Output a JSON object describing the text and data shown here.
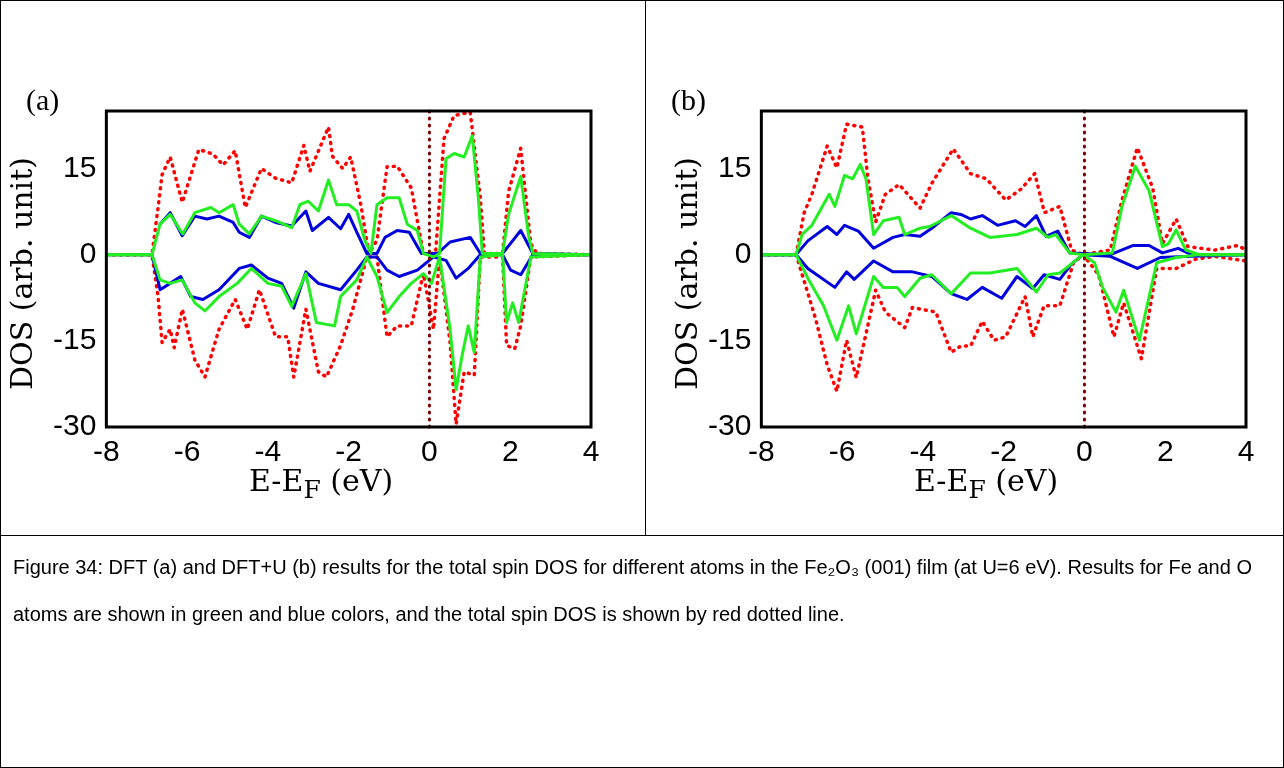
{
  "chart_data": [
    {
      "type": "line",
      "title": "(a)",
      "xlabel": "E-E$_{F}$ (eV)",
      "ylabel": "DOS (arb. unit)",
      "xlim": [
        -8,
        4
      ],
      "xticks": [
        -8,
        -6,
        -4,
        -2,
        0,
        2,
        4
      ],
      "ylim": [
        -30,
        25
      ],
      "yticks": [
        -30,
        -15,
        0,
        15
      ],
      "ref_lines": [
        {
          "axis": "x",
          "value": 0,
          "color": "#800000",
          "line_style": "dotted"
        }
      ],
      "series": [
        {
          "color": "#22ee22",
          "x": [
            -8,
            -6.87,
            -6.67,
            -6.42,
            -6.11,
            -5.81,
            -5.41,
            -5.21,
            -4.86,
            -4.71,
            -4.46,
            -4.16,
            -3.81,
            -3.41,
            -3.21,
            -3,
            -2.75,
            -2.5,
            -2.3,
            -2,
            -1.8,
            -1.6,
            -1.45,
            -1.3,
            -1.05,
            -0.75,
            -0.55,
            -0.3,
            -0.15,
            0.1,
            0.25,
            0.41,
            0.61,
            0.86,
            1.06,
            1.21,
            1.31,
            1.81,
            1.96,
            2.26,
            2.46,
            2.56,
            4
          ],
          "values": [
            0,
            0,
            5.3,
            7,
            3.6,
            7.3,
            8.2,
            7.3,
            8.7,
            5.3,
            3.6,
            6.7,
            5.9,
            4.7,
            8.7,
            9.3,
            7.6,
            13,
            8.7,
            8.7,
            7.6,
            2.5,
            0.2,
            8.7,
            9.9,
            9.9,
            5.3,
            4.2,
            0.2,
            -0.4,
            0.2,
            16.7,
            17.6,
            17,
            20.7,
            9.9,
            0.2,
            0.2,
            7,
            13.6,
            3,
            0.2,
            0
          ]
        },
        {
          "color": "#22ee22",
          "x": [
            -8,
            -6.87,
            -6.67,
            -6.42,
            -6.12,
            -5.81,
            -5.56,
            -5.21,
            -4.76,
            -4.41,
            -4,
            -3.66,
            -3.41,
            -3.06,
            -2.8,
            -2.35,
            -2.2,
            -1.8,
            -1.55,
            -1.3,
            -1.05,
            -0.75,
            -0.45,
            -0.15,
            0.05,
            0.25,
            0.51,
            0.66,
            0.81,
            0.96,
            1.11,
            1.26,
            1.81,
            1.91,
            2.06,
            2.21,
            2.51,
            4
          ],
          "values": [
            0,
            0,
            -4.4,
            -5,
            -4.4,
            -8.4,
            -9.8,
            -7.3,
            -5,
            -2.4,
            -5,
            -5.5,
            -9,
            -3.3,
            -11.8,
            -12.4,
            -7.3,
            -4.4,
            -0.4,
            -3.8,
            -10.1,
            -7.3,
            -5,
            -3.3,
            -5,
            -0.4,
            -13,
            -23.5,
            -17.5,
            -12.4,
            -17,
            -0.4,
            0,
            -11.8,
            -8.4,
            -11.8,
            -0.4,
            0
          ]
        },
        {
          "color": "#0000dd",
          "x": [
            -6.67,
            -6.42,
            -6.12,
            -5.81,
            -5.51,
            -5.21,
            -4.86,
            -4.71,
            -4.46,
            -4.16,
            -3.81,
            -3.41,
            -3.06,
            -2.9,
            -2.5,
            -2.2,
            -2,
            -1.8,
            -1.55,
            -1.3,
            -1.1,
            -0.8,
            -0.5,
            -0.2,
            0.2,
            0.51,
            1.01,
            1.26,
            1.81,
            2.26,
            2.56,
            4
          ],
          "values": [
            5.3,
            7.3,
            3.3,
            6.7,
            6.2,
            6.7,
            5.6,
            3.9,
            3,
            6.7,
            5.6,
            5,
            7.6,
            4.2,
            6.5,
            4.5,
            7,
            3.9,
            0.2,
            0.2,
            3,
            4.2,
            3.9,
            0.2,
            0.2,
            2.2,
            3,
            0.2,
            0.2,
            4.2,
            0.2,
            0
          ]
        },
        {
          "color": "#0000dd",
          "x": [
            -8,
            -6.87,
            -6.67,
            -6.42,
            -6.16,
            -5.91,
            -5.61,
            -5.21,
            -4.71,
            -4.41,
            -4,
            -3.66,
            -3.36,
            -3.06,
            -2.75,
            -2.2,
            -1.8,
            -1.55,
            -1.3,
            -1.05,
            -0.75,
            -0.3,
            0.1,
            0.41,
            0.66,
            0.96,
            1.26,
            1.81,
            2.01,
            2.26,
            2.56,
            4
          ],
          "values": [
            0,
            0,
            -6.1,
            -5,
            -3.8,
            -7.3,
            -7.8,
            -6.1,
            -2.4,
            -1.8,
            -4.1,
            -5,
            -9.3,
            -3,
            -5,
            -6.1,
            -2.7,
            -0.4,
            -0.4,
            -2.7,
            -3.8,
            -2.7,
            -0.4,
            -1,
            -4.1,
            -2.4,
            0,
            0,
            -2.7,
            -3.5,
            0,
            0
          ]
        },
        {
          "color": "#ff0000",
          "line_style": "dotted",
          "x": [
            -8,
            -6.87,
            -6.72,
            -6.62,
            -6.42,
            -6.12,
            -5.71,
            -5.36,
            -5.11,
            -4.81,
            -4.56,
            -4.16,
            -3.81,
            -3.41,
            -3.11,
            -2.96,
            -2.5,
            -2.4,
            -2.15,
            -1.95,
            -1.7,
            -1.5,
            -1.3,
            -1.05,
            -0.8,
            -0.45,
            -0.15,
            0.15,
            0.36,
            0.61,
            1.01,
            1.26,
            1.36,
            1.81,
            1.96,
            2.26,
            2.51,
            2.66,
            4
          ],
          "values": [
            0,
            0,
            8.2,
            13.9,
            17,
            9.1,
            18.3,
            17.5,
            15.6,
            18.1,
            8.2,
            15,
            13.3,
            12.5,
            19,
            14.5,
            22.2,
            17.1,
            15,
            17,
            8.7,
            0.2,
            2.5,
            15.3,
            15.4,
            11.6,
            0.2,
            0.2,
            20.2,
            24.2,
            24.8,
            9.9,
            0.2,
            0.2,
            11,
            18.5,
            1.9,
            0.2,
            0
          ]
        },
        {
          "color": "#ff0000",
          "line_style": "dotted",
          "x": [
            -8,
            -6.87,
            -6.72,
            -6.62,
            -6.42,
            -6.32,
            -6.12,
            -5.81,
            -5.56,
            -5.21,
            -4.81,
            -4.51,
            -4.21,
            -3.81,
            -3.51,
            -3.36,
            -3.06,
            -2.75,
            -2.55,
            -2.2,
            -1.9,
            -1.55,
            -1.3,
            -1.05,
            -0.8,
            -0.45,
            -0.15,
            0.1,
            0.25,
            0.51,
            0.66,
            0.86,
            1.11,
            1.26,
            1.81,
            1.91,
            2.11,
            2.26,
            2.51,
            4
          ],
          "values": [
            0,
            0,
            -7.3,
            -15.3,
            -13,
            -16.2,
            -9.5,
            -18.3,
            -21.3,
            -13,
            -7.8,
            -13,
            -6.1,
            -14.3,
            -14.3,
            -21.3,
            -9.5,
            -20.4,
            -21.3,
            -15.8,
            -9.5,
            -0.4,
            -0.4,
            -14.3,
            -12.4,
            -12.4,
            -3.3,
            -13,
            -0.4,
            -15.3,
            -29.5,
            -20.4,
            -21,
            -0.4,
            -0.4,
            -15.8,
            -16.4,
            -12.4,
            -0.4,
            0
          ]
        }
      ]
    },
    {
      "type": "line",
      "title": "(b)",
      "xlabel": "E-E$_{F}$ (eV)",
      "ylabel": "DOS (arb. unit)",
      "xlim": [
        -8,
        4
      ],
      "xticks": [
        -8,
        -6,
        -4,
        -2,
        0,
        2,
        4
      ],
      "ylim": [
        -30,
        25
      ],
      "yticks": [
        -30,
        -15,
        0,
        15
      ],
      "ref_lines": [
        {
          "axis": "x",
          "value": 0,
          "color": "#800000",
          "line_style": "dotted"
        }
      ],
      "series": [
        {
          "color": "#22ee22",
          "x": [
            -8,
            -7.14,
            -6.99,
            -6.75,
            -6.32,
            -6.18,
            -5.94,
            -5.74,
            -5.55,
            -5.41,
            -5.22,
            -4.98,
            -4.59,
            -4.45,
            -4.07,
            -3.83,
            -3.3,
            -2.82,
            -2.34,
            -1.67,
            -1.19,
            -0.9,
            -0.71,
            -0.37,
            -0.03,
            0.69,
            0.93,
            1.26,
            1.6,
            1.93,
            2.08,
            2.27,
            2.51,
            2.84,
            4
          ],
          "values": [
            0,
            0,
            3.5,
            5.1,
            10.5,
            8.4,
            13.8,
            13.2,
            15.7,
            13.2,
            3.5,
            5.9,
            6.5,
            3.5,
            4.6,
            4.9,
            6.8,
            4.6,
            3,
            3.5,
            4.6,
            3,
            3.5,
            0.3,
            0,
            0.3,
            8.4,
            15.4,
            11.1,
            1.4,
            1.9,
            4.3,
            0.8,
            0,
            0
          ]
        },
        {
          "color": "#22ee22",
          "x": [
            -8,
            -7.14,
            -6.85,
            -6.46,
            -6.13,
            -5.84,
            -5.65,
            -5.22,
            -4.98,
            -4.64,
            -4.45,
            -4.07,
            -3.78,
            -3.3,
            -2.82,
            -2.34,
            -1.67,
            -1.19,
            -0.9,
            -0.61,
            -0.32,
            -0.03,
            0.25,
            0.45,
            0.78,
            0.97,
            1.36,
            1.79,
            2.27,
            2.84,
            4
          ],
          "values": [
            0,
            0,
            -4.1,
            -8.9,
            -14.9,
            -8.9,
            -13.8,
            -3.8,
            -5.7,
            -5.7,
            -7.3,
            -4.1,
            -3.5,
            -6.8,
            -3.2,
            -3.2,
            -2.4,
            -6.5,
            -3.5,
            -3.2,
            -1.6,
            0,
            -1.4,
            -5.7,
            -10,
            -6.2,
            -14.9,
            -1.4,
            -0.5,
            0,
            0
          ]
        },
        {
          "color": "#0000dd",
          "x": [
            -8,
            -7.14,
            -6.85,
            -6.37,
            -6.13,
            -5.94,
            -5.6,
            -5.22,
            -4.74,
            -4.45,
            -4.07,
            -3.78,
            -3.3,
            -3.06,
            -2.82,
            -2.53,
            -2.15,
            -1.71,
            -1.47,
            -1.19,
            -0.95,
            -0.66,
            -0.37,
            0.64,
            1.21,
            1.6,
            1.93,
            2.32,
            2.65,
            4
          ],
          "values": [
            0,
            0,
            2.4,
            4.9,
            3.5,
            5.1,
            4.1,
            1.1,
            3,
            3.5,
            3.2,
            4.6,
            7.3,
            7,
            6.2,
            6.8,
            5.1,
            5.9,
            4.9,
            6.8,
            3.2,
            4.1,
            0.3,
            0,
            1.6,
            1.6,
            0.3,
            1.1,
            0,
            0
          ]
        },
        {
          "color": "#0000dd",
          "x": [
            -8,
            -7.14,
            -6.85,
            -6.18,
            -5.89,
            -5.7,
            -5.22,
            -4.74,
            -4.26,
            -3.78,
            -3.3,
            -2.91,
            -2.53,
            -2.05,
            -1.67,
            -1.28,
            -1,
            -0.61,
            -0.32,
            -0.03,
            0.64,
            1.31,
            1.88,
            2.65,
            4
          ],
          "values": [
            0,
            0,
            -2.4,
            -5.7,
            -3,
            -4.3,
            -1.1,
            -3,
            -3,
            -3.8,
            -6.8,
            -7.8,
            -5.7,
            -7.6,
            -3.8,
            -5.9,
            -3.5,
            -4.3,
            -1.6,
            0,
            -0.3,
            -2.4,
            -0.5,
            -0.3,
            0
          ]
        },
        {
          "color": "#ff0000",
          "line_style": "dotted",
          "x": [
            -8,
            -7.14,
            -6.94,
            -6.75,
            -6.37,
            -6.13,
            -5.89,
            -5.5,
            -5.36,
            -5.17,
            -4.93,
            -4.59,
            -4.07,
            -3.78,
            -3.25,
            -2.82,
            -2.43,
            -1.95,
            -1.57,
            -1.23,
            -0.99,
            -0.61,
            -0.32,
            -0.03,
            0.64,
            0.93,
            1.31,
            1.69,
            1.93,
            2.27,
            2.56,
            3.23,
            3.8,
            4
          ],
          "values": [
            0,
            0,
            7.3,
            10.5,
            18.9,
            15.1,
            22.7,
            22.2,
            13.2,
            5.7,
            10.5,
            12.2,
            8.1,
            12.4,
            18.4,
            14.1,
            13.2,
            9.5,
            11.4,
            14.1,
            7.3,
            8.4,
            0.8,
            0,
            0.8,
            9.5,
            18.6,
            11.6,
            1.9,
            6.2,
            1.4,
            0.8,
            1.6,
            0.8
          ]
        },
        {
          "color": "#ff0000",
          "line_style": "dotted",
          "x": [
            -8,
            -7.14,
            -6.94,
            -6.66,
            -6.37,
            -6.13,
            -5.89,
            -5.65,
            -5.41,
            -5.17,
            -4.93,
            -4.45,
            -4.26,
            -3.68,
            -3.3,
            -3.06,
            -2.82,
            -2.53,
            -2.24,
            -1.95,
            -1.47,
            -1.28,
            -1,
            -0.61,
            -0.27,
            -0.03,
            0.35,
            0.73,
            0.97,
            1.41,
            1.79,
            2.27,
            2.75,
            3.23,
            4
          ],
          "values": [
            0,
            0,
            -4.6,
            -11.1,
            -19.2,
            -23.8,
            -14.9,
            -21.4,
            -13.8,
            -6.2,
            -10,
            -12.7,
            -9.2,
            -10,
            -17,
            -15.9,
            -15.9,
            -11.6,
            -14.9,
            -14.3,
            -7.3,
            -14.3,
            -8.9,
            -8.9,
            -1.4,
            0,
            -3.5,
            -14.3,
            -8.4,
            -18.1,
            -2.4,
            -2.4,
            -0.8,
            -0.3,
            -1.1
          ]
        }
      ]
    },
    {
      "type": "other",
      "annotations": [
        "Figure 34: DFT (a) and DFT+U (b) results for the total spin DOS for different atoms in the Fe₂O₃ (001) film (at U=6 eV). Results for Fe and O atoms are shown in green and blue colors, and the total spin DOS is shown by red dotted line."
      ]
    }
  ]
}
